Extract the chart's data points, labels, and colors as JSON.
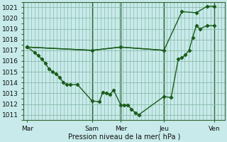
{
  "background_color": "#c8eaea",
  "grid_color": "#88bbaa",
  "line_color": "#1a5c1a",
  "marker_color": "#1a5c1a",
  "xlabel": "Pression niveau de la mer( hPa )",
  "ylim": [
    1010.5,
    1021.5
  ],
  "yticks": [
    1011,
    1012,
    1013,
    1014,
    1015,
    1016,
    1017,
    1018,
    1019,
    1020,
    1021
  ],
  "xlim": [
    0,
    28
  ],
  "day_labels": [
    "Mar",
    "Sam",
    "Mer",
    "Jeu",
    "Ven"
  ],
  "day_positions": [
    0.5,
    9.5,
    13.5,
    19.5,
    26.5
  ],
  "vline_positions": [
    9.5,
    13.5,
    19.5,
    26.5
  ],
  "series1_x": [
    0.5,
    1.5,
    2.0,
    2.5,
    3.0,
    3.5,
    4.0,
    4.5,
    5.0,
    5.5,
    6.0,
    6.5,
    7.5,
    9.5,
    10.5,
    11.0,
    11.5,
    12.0,
    12.5,
    13.5,
    14.0,
    14.5,
    15.0,
    15.5,
    16.0,
    19.5,
    20.5,
    21.5,
    22.0,
    22.5,
    23.0,
    23.5,
    24.0,
    24.5,
    25.5,
    26.5
  ],
  "series1_y": [
    1017.3,
    1016.8,
    1016.5,
    1016.2,
    1015.8,
    1015.3,
    1015.0,
    1014.8,
    1014.5,
    1014.0,
    1013.8,
    1013.8,
    1013.8,
    1012.3,
    1012.2,
    1013.1,
    1013.0,
    1012.9,
    1013.3,
    1011.9,
    1011.9,
    1011.9,
    1011.5,
    1011.2,
    1011.0,
    1012.7,
    1012.6,
    1016.2,
    1016.3,
    1016.6,
    1017.0,
    1018.2,
    1019.3,
    1019.0,
    1019.3,
    1019.3
  ],
  "series2_x": [
    0.5,
    9.5,
    13.5,
    19.5,
    22.0,
    24.0,
    25.5,
    26.5
  ],
  "series2_y": [
    1017.3,
    1017.0,
    1017.3,
    1017.0,
    1020.6,
    1020.5,
    1021.1,
    1021.1
  ],
  "series3_x": [
    0.5,
    9.5,
    13.5,
    19.5
  ],
  "series3_y": [
    1017.3,
    1017.0,
    1017.3,
    1017.0
  ]
}
